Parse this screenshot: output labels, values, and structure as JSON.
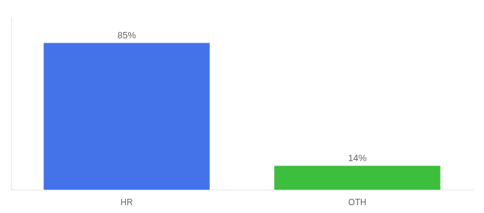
{
  "chart_data": {
    "type": "bar",
    "categories": [
      "HR",
      "OTH"
    ],
    "values": [
      85,
      14
    ],
    "value_labels": [
      "85%",
      "14%"
    ],
    "colors": [
      "#4472e8",
      "#3dbe3d"
    ],
    "ylim": [
      0,
      100
    ],
    "data_labels": true,
    "tick_labels": "x",
    "grid": false
  }
}
